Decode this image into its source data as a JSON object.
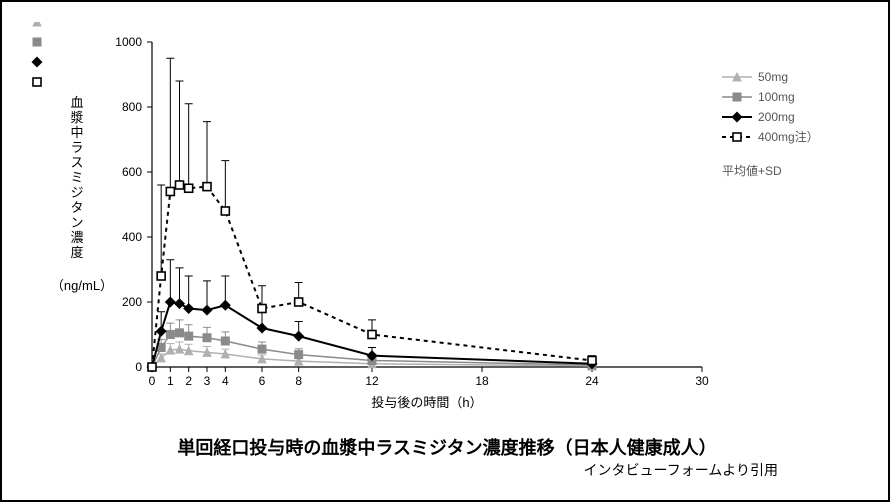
{
  "chart": {
    "type": "line-scatter-errorbar",
    "title": "単回経口投与時の血漿中ラスミジタン濃度推移（日本人健康成人）",
    "citation": "インタビューフォームより引用",
    "y_axis": {
      "label_vertical": "血漿中ラスミジタン濃度",
      "unit": "（ng/mL）",
      "min": 0,
      "max": 1000,
      "ticks": [
        0,
        200,
        400,
        600,
        800,
        1000
      ],
      "fontsize": 12
    },
    "x_axis": {
      "label": "投与後の時間（h）",
      "min": 0,
      "max": 30,
      "ticks": [
        0,
        1,
        2,
        3,
        4,
        6,
        8,
        12,
        18,
        24,
        30
      ],
      "tick_labels": [
        "0",
        "1",
        "2",
        "3",
        "4",
        "6",
        "8",
        "12",
        "18",
        "24",
        "30"
      ],
      "fontsize": 12
    },
    "legend": {
      "position": "right",
      "meta": "平均値+SD"
    },
    "background_color": "#ffffff",
    "axis_color": "#000000",
    "series": [
      {
        "name": "50mg",
        "color": "#b0b0b0",
        "marker": "triangle",
        "marker_fill": "#b0b0b0",
        "line_dash": "none",
        "line_width": 1.5,
        "x": [
          0,
          0.5,
          1,
          1.5,
          2,
          3,
          4,
          6,
          8,
          12,
          24
        ],
        "y": [
          0,
          28,
          52,
          55,
          50,
          45,
          40,
          25,
          18,
          10,
          3
        ],
        "sd": [
          0,
          12,
          20,
          22,
          20,
          18,
          15,
          12,
          10,
          6,
          3
        ]
      },
      {
        "name": "100mg",
        "color": "#8a8a8a",
        "marker": "square",
        "marker_fill": "#8a8a8a",
        "line_dash": "none",
        "line_width": 1.5,
        "x": [
          0,
          0.5,
          1,
          1.5,
          2,
          3,
          4,
          6,
          8,
          12,
          24
        ],
        "y": [
          0,
          60,
          100,
          105,
          95,
          90,
          80,
          55,
          38,
          20,
          6
        ],
        "sd": [
          0,
          25,
          35,
          40,
          35,
          32,
          28,
          22,
          18,
          12,
          5
        ]
      },
      {
        "name": "200mg",
        "color": "#000000",
        "marker": "diamond",
        "marker_fill": "#000000",
        "line_dash": "none",
        "line_width": 2,
        "x": [
          0,
          0.5,
          1,
          1.5,
          2,
          3,
          4,
          6,
          8,
          12,
          24
        ],
        "y": [
          0,
          110,
          200,
          195,
          180,
          175,
          190,
          120,
          95,
          35,
          10
        ],
        "sd": [
          0,
          60,
          130,
          110,
          100,
          90,
          90,
          55,
          45,
          25,
          10
        ]
      },
      {
        "name": "400mg注）",
        "color": "#000000",
        "marker": "square-open",
        "marker_fill": "#ffffff",
        "line_dash": "4,4",
        "line_width": 2,
        "x": [
          0,
          0.5,
          1,
          1.5,
          2,
          3,
          4,
          6,
          8,
          12,
          24
        ],
        "y": [
          0,
          280,
          540,
          560,
          550,
          555,
          480,
          180,
          200,
          100,
          20
        ],
        "sd": [
          0,
          280,
          410,
          320,
          260,
          200,
          155,
          70,
          60,
          45,
          15
        ]
      }
    ]
  }
}
